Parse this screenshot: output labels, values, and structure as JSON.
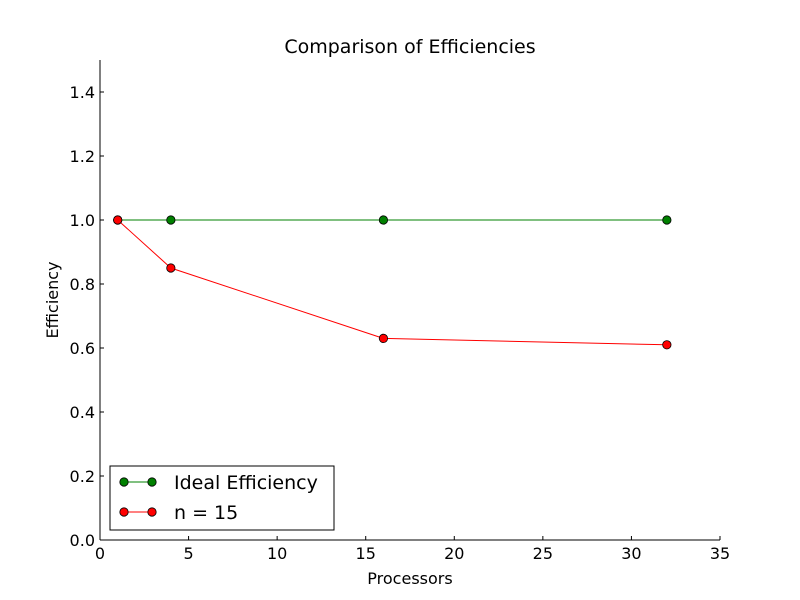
{
  "chart_data": {
    "type": "line",
    "title": "Comparison of Efficiencies",
    "xlabel": "Processors",
    "ylabel": "Efficiency",
    "xlim": [
      0,
      35
    ],
    "ylim": [
      0,
      1.5
    ],
    "xticks": [
      0,
      5,
      10,
      15,
      20,
      25,
      30,
      35
    ],
    "yticks": [
      0.0,
      0.2,
      0.4,
      0.6,
      0.8,
      1.0,
      1.2,
      1.4
    ],
    "grid": false,
    "legend_position": "lower-left",
    "series": [
      {
        "name": "Ideal Efficiency",
        "color": "#008000",
        "marker": "circle",
        "x": [
          1,
          4,
          16,
          32
        ],
        "y": [
          1.0,
          1.0,
          1.0,
          1.0
        ]
      },
      {
        "name": "n = 15",
        "color": "#ff0000",
        "marker": "circle",
        "x": [
          1,
          4,
          16,
          32
        ],
        "y": [
          1.0,
          0.85,
          0.63,
          0.61
        ]
      }
    ]
  }
}
